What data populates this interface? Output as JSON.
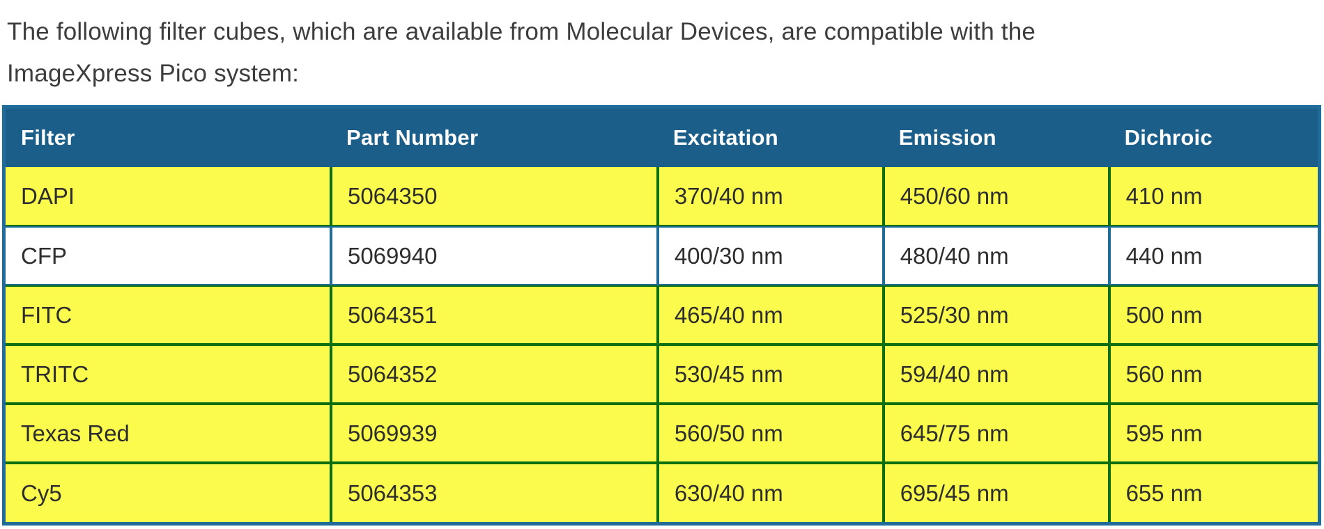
{
  "intro": {
    "line1": "The following filter cubes, which are available from Molecular Devices, are compatible with the",
    "line2": "ImageXpress Pico system:"
  },
  "table": {
    "columns": [
      "Filter",
      "Part Number",
      "Excitation",
      "Emission",
      "Dichroic"
    ],
    "rows": [
      {
        "filter": "DAPI",
        "part_number": "5064350",
        "excitation": "370/40 nm",
        "emission": "450/60 nm",
        "dichroic": "410 nm",
        "highlighted": true
      },
      {
        "filter": "CFP",
        "part_number": "5069940",
        "excitation": "400/30 nm",
        "emission": "480/40 nm",
        "dichroic": "440 nm",
        "highlighted": false
      },
      {
        "filter": "FITC",
        "part_number": "5064351",
        "excitation": "465/40 nm",
        "emission": "525/30 nm",
        "dichroic": "500 nm",
        "highlighted": true
      },
      {
        "filter": "TRITC",
        "part_number": "5064352",
        "excitation": "530/45 nm",
        "emission": "594/40 nm",
        "dichroic": "560 nm",
        "highlighted": true
      },
      {
        "filter": "Texas Red",
        "part_number": "5069939",
        "excitation": "560/50 nm",
        "emission": "645/75 nm",
        "dichroic": "595 nm",
        "highlighted": true
      },
      {
        "filter": "Cy5",
        "part_number": "5064353",
        "excitation": "630/40 nm",
        "emission": "695/45 nm",
        "dichroic": "655 nm",
        "highlighted": true
      }
    ]
  },
  "colors": {
    "header_bg": "#1B5E8A",
    "border_blue": "#1F6B99",
    "border_green": "#0B6E0F",
    "highlight_yellow": "#FBFB4D",
    "cell_text": "#2E2E2E",
    "intro_text": "#3D3D3D"
  }
}
